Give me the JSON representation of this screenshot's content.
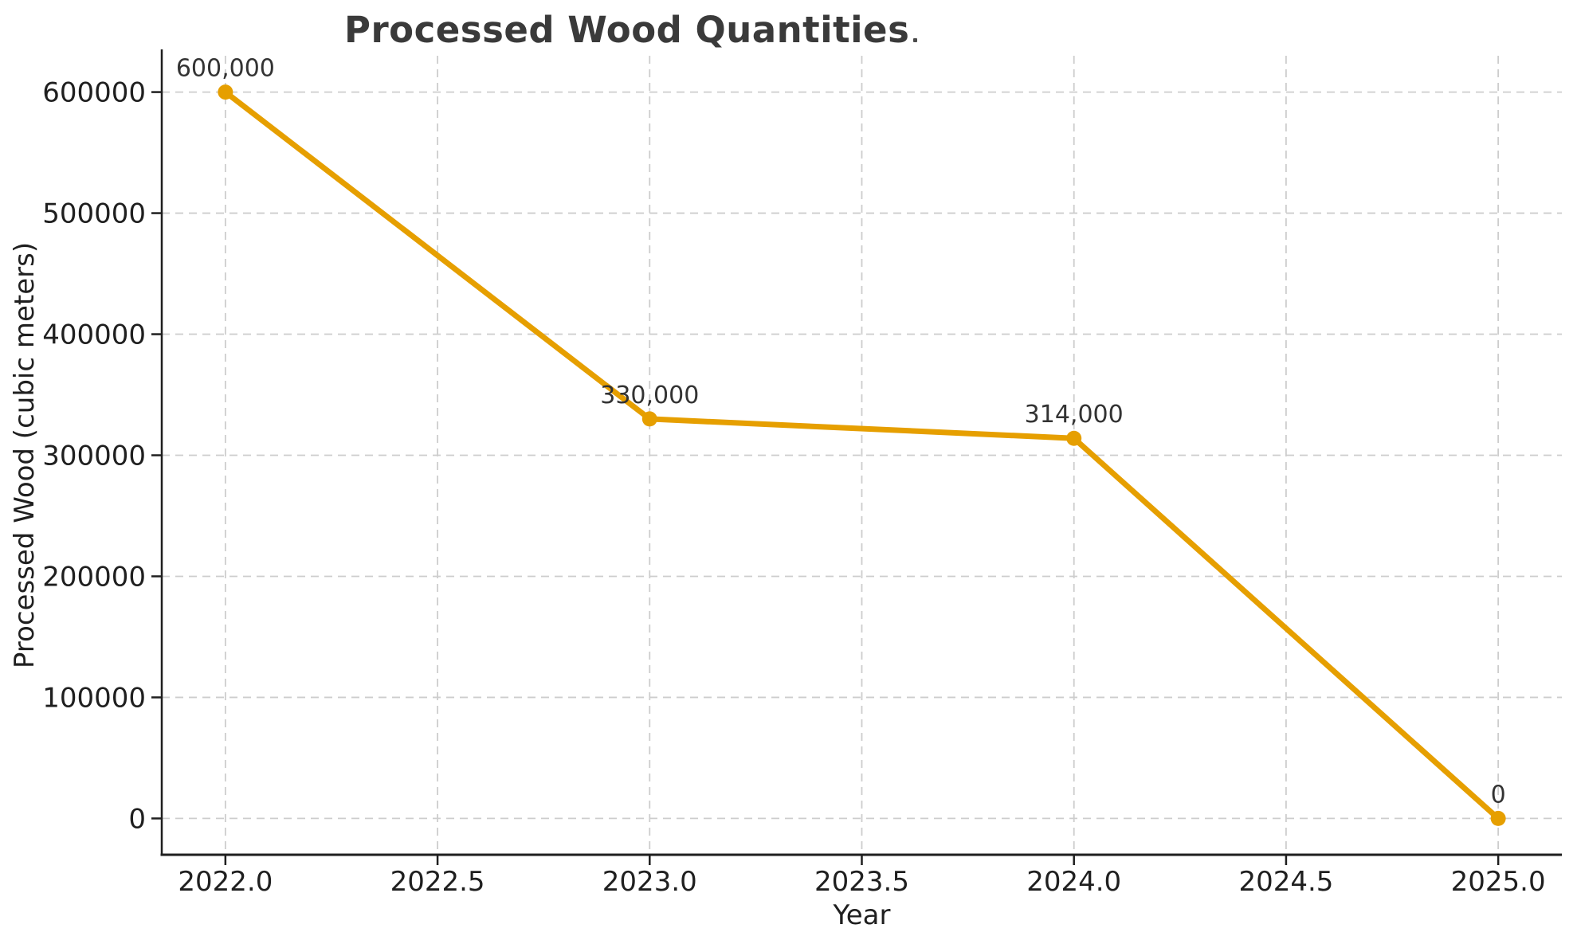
{
  "title": "Processed Wood Quantities",
  "title_trailing_dot": ".",
  "axes": {
    "x_label": "Year",
    "y_label": "Processed Wood (cubic meters)"
  },
  "chart_data": {
    "type": "line",
    "title": "Processed Wood Quantities",
    "xlabel": "Year",
    "ylabel": "Processed Wood (cubic meters)",
    "x": [
      2022,
      2023,
      2024,
      2025
    ],
    "y": [
      600000,
      330000,
      314000,
      0
    ],
    "point_labels": [
      "600,000",
      "330,000",
      "314,000",
      "0"
    ],
    "x_ticks": [
      2022.0,
      2022.5,
      2023.0,
      2023.5,
      2024.0,
      2024.5,
      2025.0
    ],
    "x_tick_labels": [
      "2022.0",
      "2022.5",
      "2023.0",
      "2023.5",
      "2024.0",
      "2024.5",
      "2025.0"
    ],
    "y_ticks": [
      0,
      100000,
      200000,
      300000,
      400000,
      500000,
      600000
    ],
    "y_tick_labels": [
      "0",
      "100000",
      "200000",
      "300000",
      "400000",
      "500000",
      "600000"
    ],
    "xlim": [
      2021.85,
      2025.15
    ],
    "ylim": [
      -30000,
      630000
    ],
    "grid": true,
    "grid_style": "dashed",
    "legend": "none",
    "series_name": "Processed Wood"
  },
  "colors": {
    "line": "#E69F00",
    "marker": "#E69F00",
    "grid": "#cdcdcd",
    "axis": "#1f1f1f",
    "tick_label": "#1f1f1f",
    "axis_label": "#1f1f1f",
    "title": "#3a3a3a",
    "annotation": "#333333",
    "background": "#ffffff"
  }
}
